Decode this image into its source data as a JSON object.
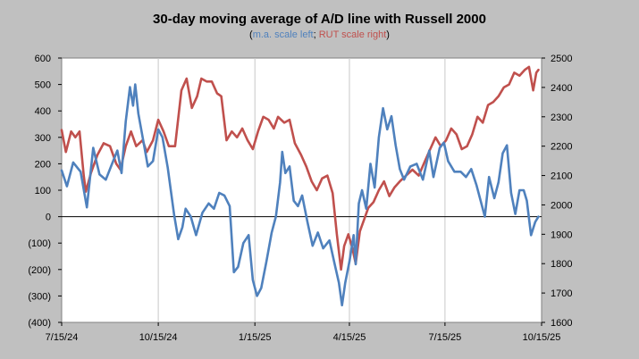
{
  "chart_data": {
    "type": "line",
    "title": "30-day moving average of A/D line with Russell 2000",
    "subtitle": {
      "left_part": "m.a. scale left",
      "separator": ";",
      "right_part": "RUT scale right",
      "open": "(",
      "close": ")"
    },
    "x_ticks": [
      "7/15/24",
      "10/15/24",
      "1/15/25",
      "4/15/25",
      "7/15/25",
      "10/15/25"
    ],
    "x_range": [
      "2024-07-15",
      "2025-10-15"
    ],
    "y_left": {
      "range": [
        -400,
        600
      ],
      "ticks": [
        600,
        500,
        400,
        300,
        200,
        100,
        0,
        -100,
        -200,
        -300,
        -400
      ],
      "tick_labels": [
        "600",
        "500",
        "400",
        "300",
        "200",
        "100",
        "0",
        "(100)",
        "(200)",
        "(300)",
        "(400)"
      ]
    },
    "y_right": {
      "range": [
        1600,
        2500
      ],
      "ticks": [
        2500,
        2400,
        2300,
        2200,
        2100,
        2000,
        1900,
        1800,
        1700,
        1600
      ],
      "tick_labels": [
        "2500",
        "2400",
        "2300",
        "2200",
        "2100",
        "2000",
        "1900",
        "1800",
        "1700",
        "1600"
      ]
    },
    "grid": "vertical",
    "series": [
      {
        "axis": "left",
        "color": "#4f81bd",
        "points": [
          [
            "2024-07-15",
            175
          ],
          [
            "2024-07-20",
            115
          ],
          [
            "2024-07-26",
            205
          ],
          [
            "2024-08-02",
            170
          ],
          [
            "2024-08-08",
            35
          ],
          [
            "2024-08-14",
            260
          ],
          [
            "2024-08-20",
            160
          ],
          [
            "2024-08-26",
            140
          ],
          [
            "2024-09-01",
            200
          ],
          [
            "2024-09-06",
            250
          ],
          [
            "2024-09-10",
            165
          ],
          [
            "2024-09-14",
            360
          ],
          [
            "2024-09-18",
            490
          ],
          [
            "2024-09-21",
            420
          ],
          [
            "2024-09-23",
            500
          ],
          [
            "2024-09-26",
            390
          ],
          [
            "2024-10-01",
            280
          ],
          [
            "2024-10-05",
            190
          ],
          [
            "2024-10-10",
            210
          ],
          [
            "2024-10-15",
            330
          ],
          [
            "2024-10-19",
            300
          ],
          [
            "2024-10-24",
            185
          ],
          [
            "2024-10-30",
            10
          ],
          [
            "2024-11-03",
            -85
          ],
          [
            "2024-11-07",
            -40
          ],
          [
            "2024-11-10",
            30
          ],
          [
            "2024-11-15",
            0
          ],
          [
            "2024-11-20",
            -70
          ],
          [
            "2024-11-26",
            15
          ],
          [
            "2024-12-02",
            50
          ],
          [
            "2024-12-07",
            30
          ],
          [
            "2024-12-12",
            90
          ],
          [
            "2024-12-17",
            80
          ],
          [
            "2024-12-22",
            40
          ],
          [
            "2024-12-26",
            -210
          ],
          [
            "2024-12-30",
            -190
          ],
          [
            "2025-01-04",
            -100
          ],
          [
            "2025-01-09",
            -70
          ],
          [
            "2025-01-13",
            -240
          ],
          [
            "2025-01-17",
            -300
          ],
          [
            "2025-01-21",
            -270
          ],
          [
            "2025-01-26",
            -170
          ],
          [
            "2025-01-31",
            -60
          ],
          [
            "2025-02-04",
            0
          ],
          [
            "2025-02-08",
            130
          ],
          [
            "2025-02-10",
            245
          ],
          [
            "2025-02-13",
            165
          ],
          [
            "2025-02-17",
            190
          ],
          [
            "2025-02-21",
            60
          ],
          [
            "2025-02-25",
            40
          ],
          [
            "2025-03-01",
            80
          ],
          [
            "2025-03-06",
            -20
          ],
          [
            "2025-03-11",
            -110
          ],
          [
            "2025-03-16",
            -60
          ],
          [
            "2025-03-21",
            -120
          ],
          [
            "2025-03-27",
            -90
          ],
          [
            "2025-04-01",
            -180
          ],
          [
            "2025-04-05",
            -250
          ],
          [
            "2025-04-08",
            -335
          ],
          [
            "2025-04-11",
            -250
          ],
          [
            "2025-04-15",
            -170
          ],
          [
            "2025-04-19",
            -70
          ],
          [
            "2025-04-21",
            -180
          ],
          [
            "2025-04-24",
            50
          ],
          [
            "2025-04-27",
            100
          ],
          [
            "2025-05-01",
            30
          ],
          [
            "2025-05-05",
            200
          ],
          [
            "2025-05-09",
            110
          ],
          [
            "2025-05-13",
            300
          ],
          [
            "2025-05-17",
            410
          ],
          [
            "2025-05-21",
            330
          ],
          [
            "2025-05-25",
            380
          ],
          [
            "2025-05-29",
            270
          ],
          [
            "2025-06-02",
            180
          ],
          [
            "2025-06-06",
            140
          ],
          [
            "2025-06-12",
            190
          ],
          [
            "2025-06-18",
            200
          ],
          [
            "2025-06-24",
            140
          ],
          [
            "2025-06-30",
            250
          ],
          [
            "2025-07-04",
            150
          ],
          [
            "2025-07-10",
            260
          ],
          [
            "2025-07-14",
            280
          ],
          [
            "2025-07-18",
            210
          ],
          [
            "2025-07-24",
            170
          ],
          [
            "2025-07-30",
            170
          ],
          [
            "2025-08-04",
            150
          ],
          [
            "2025-08-09",
            180
          ],
          [
            "2025-08-14",
            120
          ],
          [
            "2025-08-18",
            60
          ],
          [
            "2025-08-22",
            0
          ],
          [
            "2025-08-26",
            150
          ],
          [
            "2025-08-31",
            70
          ],
          [
            "2025-09-04",
            130
          ],
          [
            "2025-09-08",
            240
          ],
          [
            "2025-09-12",
            270
          ],
          [
            "2025-09-16",
            90
          ],
          [
            "2025-09-20",
            10
          ],
          [
            "2025-09-24",
            100
          ],
          [
            "2025-09-28",
            100
          ],
          [
            "2025-10-01",
            60
          ],
          [
            "2025-10-05",
            -70
          ],
          [
            "2025-10-09",
            -20
          ],
          [
            "2025-10-12",
            0
          ]
        ]
      },
      {
        "axis": "right",
        "color": "#c0504d",
        "points": [
          [
            "2024-07-15",
            2255
          ],
          [
            "2024-07-19",
            2180
          ],
          [
            "2024-07-24",
            2250
          ],
          [
            "2024-07-28",
            2230
          ],
          [
            "2024-08-01",
            2250
          ],
          [
            "2024-08-05",
            2100
          ],
          [
            "2024-08-07",
            2045
          ],
          [
            "2024-08-12",
            2110
          ],
          [
            "2024-08-18",
            2170
          ],
          [
            "2024-08-24",
            2210
          ],
          [
            "2024-08-30",
            2200
          ],
          [
            "2024-09-05",
            2140
          ],
          [
            "2024-09-09",
            2120
          ],
          [
            "2024-09-14",
            2200
          ],
          [
            "2024-09-19",
            2250
          ],
          [
            "2024-09-24",
            2200
          ],
          [
            "2024-09-30",
            2220
          ],
          [
            "2024-10-04",
            2180
          ],
          [
            "2024-10-10",
            2220
          ],
          [
            "2024-10-15",
            2290
          ],
          [
            "2024-10-20",
            2250
          ],
          [
            "2024-10-25",
            2200
          ],
          [
            "2024-10-31",
            2200
          ],
          [
            "2024-11-06",
            2390
          ],
          [
            "2024-11-11",
            2430
          ],
          [
            "2024-11-16",
            2330
          ],
          [
            "2024-11-21",
            2370
          ],
          [
            "2024-11-25",
            2430
          ],
          [
            "2024-11-30",
            2420
          ],
          [
            "2024-12-05",
            2420
          ],
          [
            "2024-12-10",
            2380
          ],
          [
            "2024-12-14",
            2370
          ],
          [
            "2024-12-19",
            2220
          ],
          [
            "2024-12-24",
            2250
          ],
          [
            "2024-12-29",
            2230
          ],
          [
            "2025-01-03",
            2260
          ],
          [
            "2025-01-08",
            2220
          ],
          [
            "2025-01-13",
            2190
          ],
          [
            "2025-01-18",
            2250
          ],
          [
            "2025-01-23",
            2300
          ],
          [
            "2025-01-28",
            2290
          ],
          [
            "2025-02-02",
            2260
          ],
          [
            "2025-02-06",
            2300
          ],
          [
            "2025-02-12",
            2280
          ],
          [
            "2025-02-17",
            2290
          ],
          [
            "2025-02-22",
            2210
          ],
          [
            "2025-02-28",
            2170
          ],
          [
            "2025-03-05",
            2130
          ],
          [
            "2025-03-10",
            2080
          ],
          [
            "2025-03-15",
            2050
          ],
          [
            "2025-03-20",
            2090
          ],
          [
            "2025-03-25",
            2100
          ],
          [
            "2025-03-30",
            2040
          ],
          [
            "2025-04-03",
            1900
          ],
          [
            "2025-04-07",
            1780
          ],
          [
            "2025-04-10",
            1860
          ],
          [
            "2025-04-14",
            1900
          ],
          [
            "2025-04-18",
            1850
          ],
          [
            "2025-04-21",
            1800
          ],
          [
            "2025-04-25",
            1910
          ],
          [
            "2025-04-29",
            1950
          ],
          [
            "2025-05-03",
            1990
          ],
          [
            "2025-05-08",
            2010
          ],
          [
            "2025-05-13",
            2050
          ],
          [
            "2025-05-18",
            2080
          ],
          [
            "2025-05-23",
            2030
          ],
          [
            "2025-05-28",
            2060
          ],
          [
            "2025-06-02",
            2080
          ],
          [
            "2025-06-08",
            2100
          ],
          [
            "2025-06-14",
            2120
          ],
          [
            "2025-06-20",
            2100
          ],
          [
            "2025-06-26",
            2150
          ],
          [
            "2025-07-01",
            2190
          ],
          [
            "2025-07-06",
            2230
          ],
          [
            "2025-07-11",
            2200
          ],
          [
            "2025-07-16",
            2220
          ],
          [
            "2025-07-21",
            2260
          ],
          [
            "2025-07-26",
            2240
          ],
          [
            "2025-07-31",
            2190
          ],
          [
            "2025-08-05",
            2200
          ],
          [
            "2025-08-10",
            2240
          ],
          [
            "2025-08-15",
            2300
          ],
          [
            "2025-08-20",
            2280
          ],
          [
            "2025-08-25",
            2340
          ],
          [
            "2025-08-30",
            2350
          ],
          [
            "2025-09-04",
            2370
          ],
          [
            "2025-09-09",
            2400
          ],
          [
            "2025-09-14",
            2410
          ],
          [
            "2025-09-19",
            2450
          ],
          [
            "2025-09-24",
            2440
          ],
          [
            "2025-09-29",
            2460
          ],
          [
            "2025-10-03",
            2470
          ],
          [
            "2025-10-07",
            2390
          ],
          [
            "2025-10-10",
            2450
          ],
          [
            "2025-10-12",
            2460
          ]
        ]
      }
    ]
  }
}
